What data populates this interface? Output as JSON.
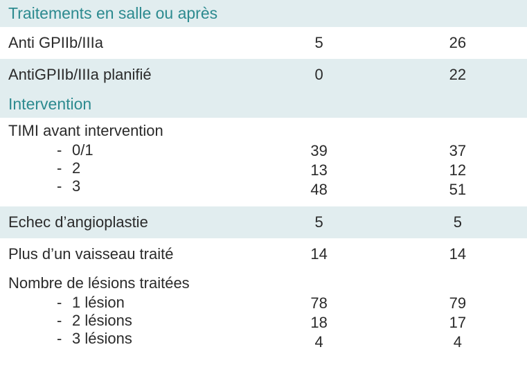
{
  "colors": {
    "section_bg": "#e1edef",
    "section_text": "#2c8a8f",
    "row_shade_bg": "#e1edef",
    "text": "#2a2a2a",
    "bg": "#ffffff"
  },
  "sections": {
    "treatments": {
      "title": "Traitements en salle ou après",
      "rows": {
        "anti_gp": {
          "label": "Anti GPIIb/IIIa",
          "v1": "5",
          "v2": "26"
        },
        "anti_gp_plan": {
          "label": "AntiGPIIb/IIIa planifié",
          "v1": "0",
          "v2": "22"
        }
      }
    },
    "intervention": {
      "title": "Intervention",
      "timi": {
        "label": "TIMI avant intervention",
        "items": [
          {
            "label": "0/1",
            "v1": "39",
            "v2": "37"
          },
          {
            "label": "2",
            "v1": "13",
            "v2": "12"
          },
          {
            "label": "3",
            "v1": "48",
            "v2": "51"
          }
        ]
      },
      "echec": {
        "label": "Echec d’angioplastie",
        "v1": "5",
        "v2": "5"
      },
      "plus_vaisseau": {
        "label": "Plus d’un vaisseau traité",
        "v1": "14",
        "v2": "14"
      },
      "lesions": {
        "label": "Nombre de lésions traitées",
        "items": [
          {
            "label": "1 lésion",
            "v1": "78",
            "v2": "79"
          },
          {
            "label": "2 lésions",
            "v1": "18",
            "v2": "17"
          },
          {
            "label": "3 lésions",
            "v1": "4",
            "v2": "4"
          }
        ]
      }
    }
  }
}
